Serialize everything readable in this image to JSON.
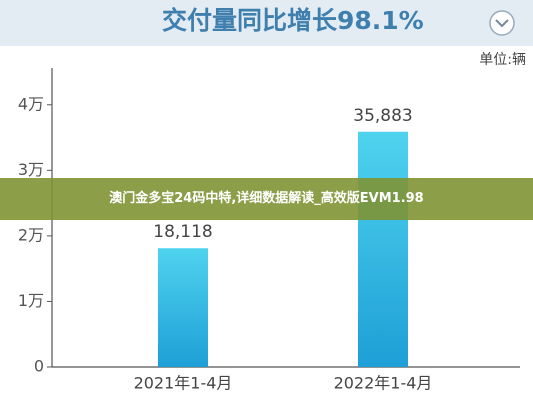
{
  "chart_data": {
    "type": "bar",
    "title": "交付量同比增长98.1%",
    "unit_label": "单位:辆",
    "categories": [
      "2021年1-4月",
      "2022年1-4月"
    ],
    "values": [
      18118,
      35883
    ],
    "value_labels": [
      "18,118",
      "35,883"
    ],
    "ylim": [
      0,
      45000
    ],
    "yticks": [
      0,
      {
        "value": 10000,
        "label": "1万"
      },
      {
        "value": 20000,
        "label": "2万"
      },
      {
        "value": 30000,
        "label": "3万"
      },
      {
        "value": 40000,
        "label": "4万"
      }
    ]
  },
  "overlay_banner": "澳门金多宝24码中特,详细数据解读_高效版EVM1.98"
}
